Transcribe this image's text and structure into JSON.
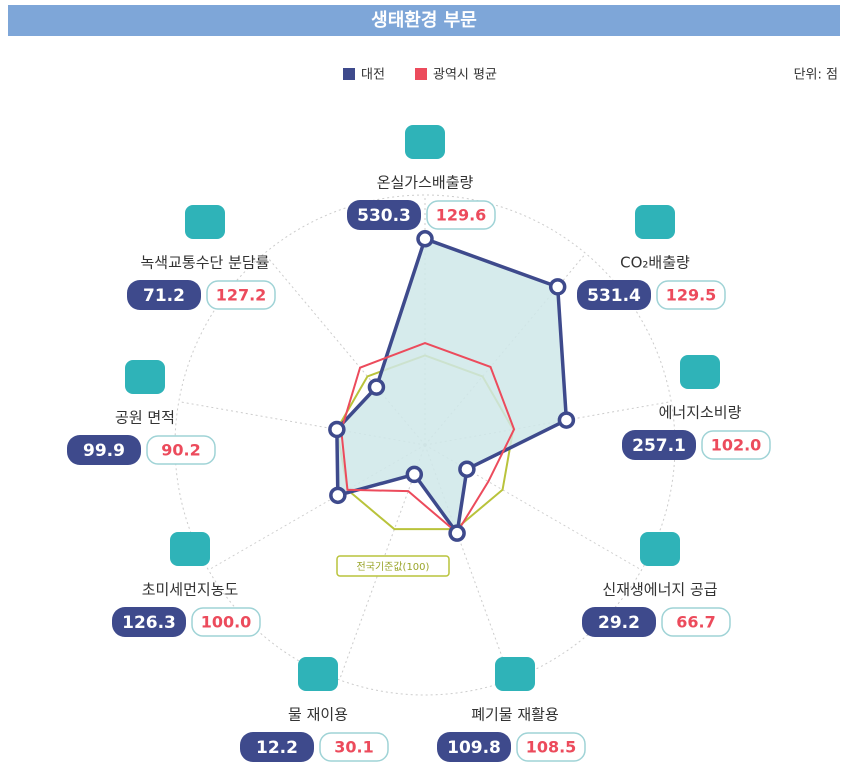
{
  "chart_data": {
    "type": "radar",
    "title": "생태환경 부문",
    "unit_label": "단위: 점",
    "categories": [
      "온실가스배출량",
      "CO₂배출량",
      "에너지소비량",
      "신재생에너지 공급",
      "폐기물 재활용",
      "물 재이용",
      "초미세먼지농도",
      "공원 면적",
      "녹색교통수단 분담률"
    ],
    "series": [
      {
        "name": "대전",
        "color": "#3e4a8c",
        "values": [
          530.3,
          531.4,
          257.1,
          29.2,
          109.8,
          12.2,
          126.3,
          99.9,
          71.2
        ],
        "value_labels": [
          "530.3",
          "531.4",
          "257.1",
          "29.2",
          "109.8",
          "12.2",
          "126.3",
          "99.9",
          "71.2"
        ]
      },
      {
        "name": "광역시 평균",
        "color": "#ec4b5c",
        "values": [
          129.6,
          129.5,
          102.0,
          66.7,
          108.5,
          30.1,
          100.0,
          90.2,
          127.2
        ],
        "value_labels": [
          "129.6",
          "129.5",
          "102.0",
          "66.7",
          "108.5",
          "30.1",
          "100.0",
          "90.2",
          "127.2"
        ]
      }
    ],
    "reference": {
      "label": "전국기준값(100)",
      "value": 100,
      "color": "#b9c33b"
    },
    "rlim": [
      0,
      550
    ],
    "rscale": "sqrt"
  }
}
